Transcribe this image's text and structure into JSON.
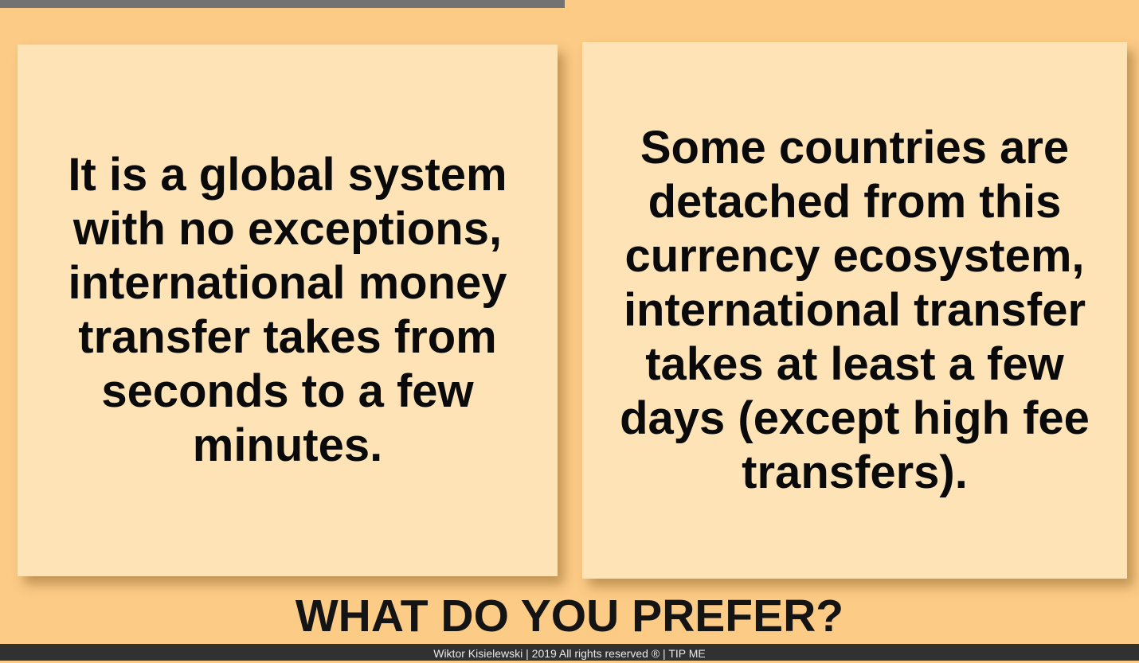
{
  "progress": {
    "fraction": 0.496
  },
  "options": {
    "left": {
      "text": "It is a global system with no exceptions, international money transfer takes from seconds to a few minutes."
    },
    "right": {
      "text": "Some countries are detached from this currency ecosystem, international transfer takes at least a few days (except high fee transfers)."
    }
  },
  "question": "WHAT DO YOU PREFER?",
  "footer": {
    "credit": "Wiktor Kisielewski | 2019 All rights reserved ® | ",
    "tip_link": "TIP ME"
  }
}
